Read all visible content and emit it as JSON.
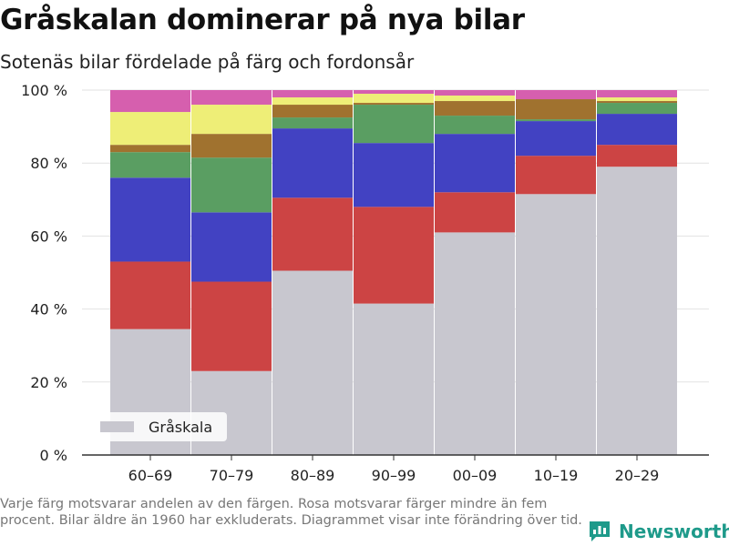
{
  "title": "Gråskalan dominerar på nya bilar",
  "subtitle": "Sotenäs bilar fördelade på färg och fordonsår",
  "footnote": "Varje färg motsvarar andelen av den färgen. Rosa motsvarar färger mindre än fem procent. Bilar äldre än 1960 har exkluderats. Diagrammet visar inte förändring över tid.",
  "brand": "Newsworthy",
  "chart_data": {
    "type": "bar",
    "stacked": true,
    "categories": [
      "60–69",
      "70–79",
      "80–89",
      "90–99",
      "00–09",
      "10–19",
      "20–29"
    ],
    "ylim": [
      0,
      100
    ],
    "yticks": [
      0,
      20,
      40,
      60,
      80,
      100
    ],
    "ytick_suffix": " %",
    "grid": true,
    "legend_position": "bottom-left",
    "series": [
      {
        "name": "Gråskala",
        "color": "#c8c7cf",
        "values": [
          34.5,
          23,
          50.5,
          41.5,
          61,
          71.5,
          79
        ]
      },
      {
        "color": "#cc4444",
        "values": [
          18.5,
          24.5,
          20,
          26.5,
          11,
          10.5,
          6
        ]
      },
      {
        "color": "#4242c2",
        "values": [
          23,
          19,
          19,
          17.5,
          16,
          9.5,
          8.5
        ]
      },
      {
        "color": "#5a9e62",
        "values": [
          7,
          15,
          3,
          10.5,
          5,
          0.5,
          3
        ]
      },
      {
        "color": "#a0722f",
        "values": [
          2,
          6.5,
          3.5,
          0.5,
          4,
          5.5,
          0.5
        ]
      },
      {
        "color": "#eeee77",
        "values": [
          9,
          8,
          2,
          2.5,
          1.5,
          0,
          1
        ]
      },
      {
        "color": "#d65fae",
        "values": [
          6,
          4,
          2,
          1,
          1.5,
          2.5,
          2
        ]
      }
    ]
  }
}
